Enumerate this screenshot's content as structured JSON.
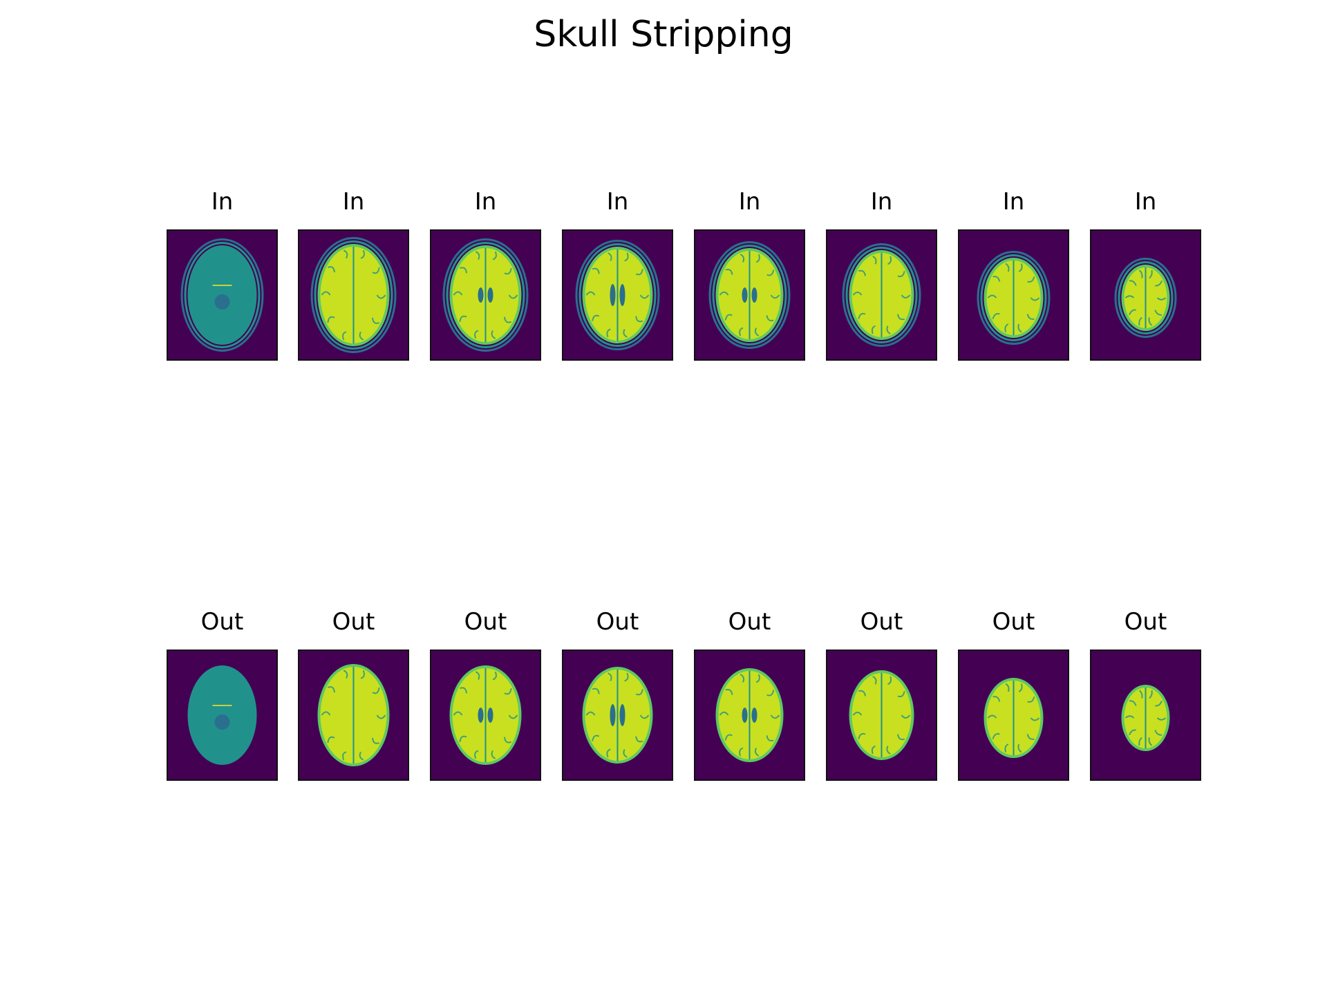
{
  "figure": {
    "title": "Skull Stripping",
    "rows": [
      {
        "label": "In",
        "slices": [
          {
            "label": "In",
            "variant": "skull",
            "level": 0
          },
          {
            "label": "In",
            "variant": "skull",
            "level": 1
          },
          {
            "label": "In",
            "variant": "skull",
            "level": 2
          },
          {
            "label": "In",
            "variant": "skull",
            "level": 3
          },
          {
            "label": "In",
            "variant": "skull",
            "level": 4
          },
          {
            "label": "In",
            "variant": "skull",
            "level": 5
          },
          {
            "label": "In",
            "variant": "skull",
            "level": 6
          },
          {
            "label": "In",
            "variant": "skull",
            "level": 7
          }
        ]
      },
      {
        "label": "Out",
        "slices": [
          {
            "label": "Out",
            "variant": "stripped",
            "level": 0
          },
          {
            "label": "Out",
            "variant": "stripped",
            "level": 1
          },
          {
            "label": "Out",
            "variant": "stripped",
            "level": 2
          },
          {
            "label": "Out",
            "variant": "stripped",
            "level": 3
          },
          {
            "label": "Out",
            "variant": "stripped",
            "level": 4
          },
          {
            "label": "Out",
            "variant": "stripped",
            "level": 5
          },
          {
            "label": "Out",
            "variant": "stripped",
            "level": 6
          },
          {
            "label": "Out",
            "variant": "stripped",
            "level": 7
          }
        ]
      }
    ]
  },
  "colors": {
    "background": "#440154",
    "dark": "#2a6f8e",
    "mid": "#21918c",
    "light": "#5ec962",
    "bright": "#c8e020",
    "peak": "#fde725",
    "frame": "#111111"
  }
}
